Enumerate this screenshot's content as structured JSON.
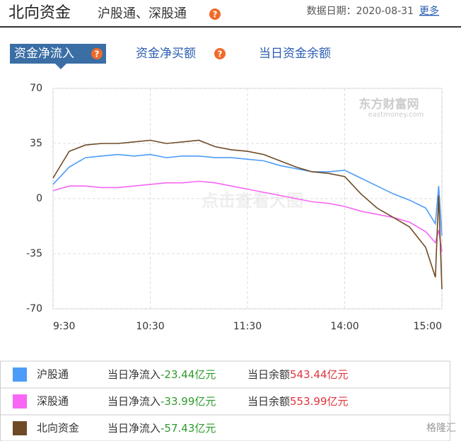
{
  "header": {
    "title": "北向资金",
    "subtitle": "沪股通、深股通",
    "help_icon": "?",
    "date": "数据日期：2020-08-31",
    "more": "更多"
  },
  "tabs": [
    "资金净流入",
    "资金净买额",
    "当日资金余额"
  ],
  "watermarks": {
    "center": "点击查看大图",
    "brand": "东方财富网",
    "brand_url": "eastmoney.com",
    "corner": "格隆汇"
  },
  "chart_data": {
    "type": "line",
    "x": [
      0,
      10,
      20,
      30,
      40,
      50,
      60,
      70,
      80,
      90,
      100,
      110,
      120,
      130,
      140,
      150,
      160,
      170,
      180,
      190,
      200,
      210,
      220,
      230,
      236,
      238,
      240
    ],
    "xlim": [
      0,
      240
    ],
    "xticks": [
      {
        "value": 0,
        "label": "9:30"
      },
      {
        "value": 60,
        "label": "10:30"
      },
      {
        "value": 120,
        "label": "11:30"
      },
      {
        "value": 180,
        "label": "14:00"
      },
      {
        "value": 240,
        "label": "15:00"
      }
    ],
    "ylim": [
      -70,
      70
    ],
    "yticks": [
      -70,
      -35,
      0,
      35,
      70
    ],
    "grid": true,
    "series": [
      {
        "name": "沪股通",
        "color": "#4d9cf8",
        "values": [
          9,
          20,
          26,
          27,
          28,
          27,
          28,
          26,
          27,
          27,
          26,
          26,
          25,
          24,
          21,
          19,
          17,
          17,
          18,
          13,
          8,
          3,
          -1,
          -6,
          -16,
          8,
          -23.44
        ]
      },
      {
        "name": "深股通",
        "color": "#f766f5",
        "values": [
          5,
          8,
          8,
          7,
          7,
          8,
          9,
          10,
          10,
          11,
          10,
          8,
          6,
          4,
          2,
          0,
          -2,
          -3,
          -5,
          -8,
          -10,
          -12,
          -15,
          -21,
          -28,
          -20,
          -33.99
        ]
      },
      {
        "name": "北向资金",
        "color": "#6e4a25",
        "values": [
          13,
          30,
          34,
          35,
          35,
          36,
          37,
          35,
          36,
          37,
          33,
          31,
          30,
          28,
          24,
          20,
          17,
          16,
          14,
          3,
          -6,
          -12,
          -18,
          -31,
          -50,
          2,
          -57.43
        ]
      }
    ]
  },
  "summary": [
    {
      "flow_label": "当日净流入",
      "flow": "-23.44亿元",
      "balance_label": "当日余额",
      "balance": "543.44亿元"
    },
    {
      "flow_label": "当日净流入",
      "flow": "-33.99亿元",
      "balance_label": "当日余额",
      "balance": "553.99亿元"
    },
    {
      "flow_label": "当日净流入",
      "flow": "-57.43亿元"
    }
  ]
}
